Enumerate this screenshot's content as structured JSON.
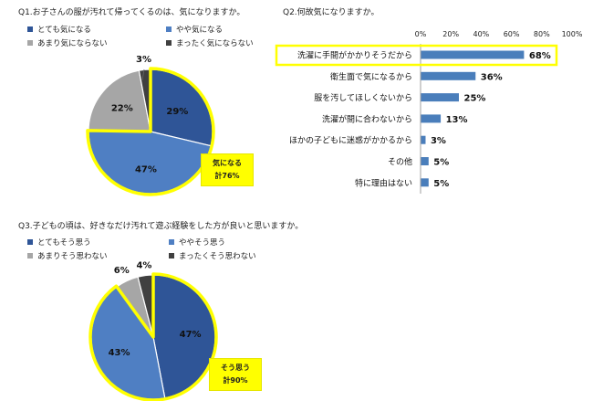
{
  "colors": {
    "dark_blue": "#2f5597",
    "mid_blue": "#4f7fc3",
    "gray": "#a6a6a6",
    "dark_gray": "#404040",
    "highlight": "#ffff00",
    "bar": "#4a7ebb"
  },
  "q1": {
    "title": "Q1.お子さんの服が汚れて帰ってくるのは、気になりますか。",
    "callout_line1": "気になる",
    "callout_line2": "計76%"
  },
  "q2": {
    "title": "Q2.何故気になりますか。"
  },
  "q3": {
    "title": "Q3.子どもの頃は、好きなだけ汚れて遊ぶ経験をした方が良いと思いますか。",
    "callout_line1": "そう思う",
    "callout_line2": "計90%"
  },
  "chart_data": [
    {
      "type": "pie",
      "categories": [
        "とても気になる",
        "やや気になる",
        "あまり気にならない",
        "まったく気にならない"
      ],
      "values": [
        29,
        47,
        22,
        3
      ],
      "value_labels": [
        "29%",
        "47%",
        "22%",
        "3%"
      ]
    },
    {
      "type": "bar",
      "orientation": "horizontal",
      "categories": [
        "洗濯に手間がかかりそうだから",
        "衛生面で気になるから",
        "服を汚してほしくないから",
        "洗濯が間に合わないから",
        "ほかの子どもに迷惑がかかるから",
        "その他",
        "特に理由はない"
      ],
      "values": [
        68,
        36,
        25,
        13,
        3,
        5,
        5
      ],
      "value_labels": [
        "68%",
        "36%",
        "25%",
        "13%",
        "3%",
        "5%",
        "5%"
      ],
      "xlim": [
        0,
        100
      ],
      "x_ticks": [
        "0%",
        "20%",
        "40%",
        "60%",
        "80%",
        "100%"
      ]
    },
    {
      "type": "pie",
      "categories": [
        "とてもそう思う",
        "ややそう思う",
        "あまりそう思わない",
        "まったくそう思わない"
      ],
      "values": [
        47,
        43,
        6,
        4
      ],
      "value_labels": [
        "47%",
        "43%",
        "6%",
        "4%"
      ]
    }
  ]
}
